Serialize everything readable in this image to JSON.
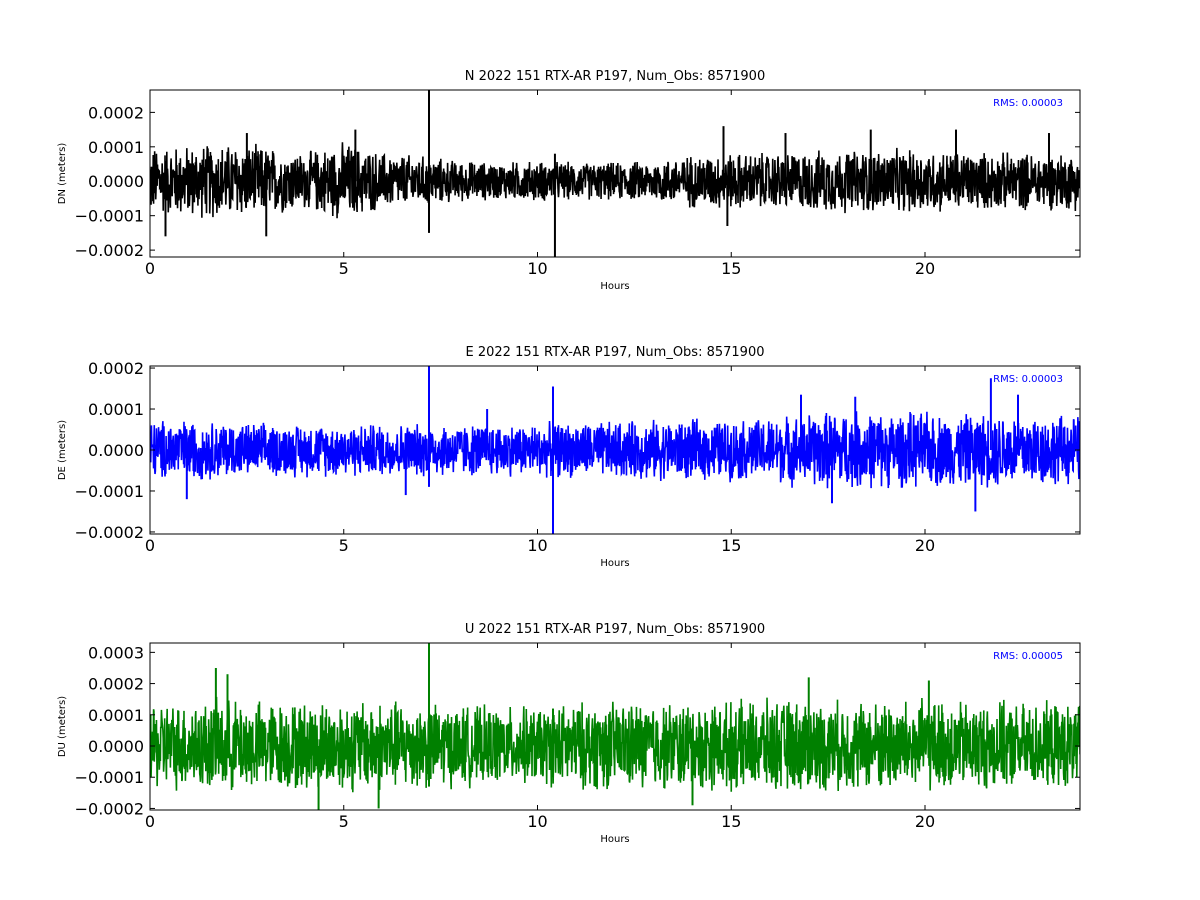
{
  "chart_data": [
    {
      "type": "line",
      "title": "N 2022 151 RTX-AR  P197, Num_Obs: 8571900",
      "xlabel": "Hours",
      "ylabel": "DN (meters)",
      "xlim": [
        0,
        24
      ],
      "ylim": [
        -0.00022,
        0.000265
      ],
      "xticks": [
        0,
        5,
        10,
        15,
        20
      ],
      "xtick_labels": [
        "0",
        "5",
        "10",
        "15",
        "20"
      ],
      "yticks": [
        -0.0002,
        -0.0001,
        0.0,
        0.0001,
        0.0002
      ],
      "ytick_labels": [
        "−0.0002",
        "−0.0001",
        "0.0000",
        "0.0001",
        "0.0002"
      ],
      "annotation": "RMS:  0.00003",
      "annotation_color": "#0000ff",
      "color": "#000000",
      "grid": false,
      "envelope": [
        {
          "x": 0,
          "amp": 0.00011
        },
        {
          "x": 1,
          "amp": 0.000115
        },
        {
          "x": 2,
          "amp": 0.00012
        },
        {
          "x": 3,
          "amp": 0.00011
        },
        {
          "x": 4,
          "amp": 9e-05
        },
        {
          "x": 5,
          "amp": 0.000125
        },
        {
          "x": 6,
          "amp": 9e-05
        },
        {
          "x": 7,
          "amp": 8e-05
        },
        {
          "x": 8,
          "amp": 6.5e-05
        },
        {
          "x": 9,
          "amp": 6e-05
        },
        {
          "x": 10,
          "amp": 6.5e-05
        },
        {
          "x": 11,
          "amp": 6e-05
        },
        {
          "x": 12,
          "amp": 6e-05
        },
        {
          "x": 13,
          "amp": 6.5e-05
        },
        {
          "x": 14,
          "amp": 8.5e-05
        },
        {
          "x": 15,
          "amp": 9e-05
        },
        {
          "x": 16,
          "amp": 9e-05
        },
        {
          "x": 17,
          "amp": 9.5e-05
        },
        {
          "x": 18,
          "amp": 0.0001
        },
        {
          "x": 19,
          "amp": 0.0001
        },
        {
          "x": 20,
          "amp": 0.0001
        },
        {
          "x": 21,
          "amp": 9.5e-05
        },
        {
          "x": 22,
          "amp": 9e-05
        },
        {
          "x": 23,
          "amp": 9e-05
        },
        {
          "x": 24,
          "amp": 9e-05
        }
      ],
      "spikes": [
        {
          "x": 0.4,
          "y": -0.00016
        },
        {
          "x": 3.0,
          "y": -0.00016
        },
        {
          "x": 2.5,
          "y": 0.00014
        },
        {
          "x": 5.3,
          "y": 0.00015
        },
        {
          "x": 7.2,
          "y": 0.000265
        },
        {
          "x": 7.2,
          "y": -0.00015
        },
        {
          "x": 10.45,
          "y": -0.00022
        },
        {
          "x": 10.45,
          "y": 8e-05
        },
        {
          "x": 14.8,
          "y": 0.00016
        },
        {
          "x": 14.9,
          "y": -0.00013
        },
        {
          "x": 16.4,
          "y": 0.00014
        },
        {
          "x": 18.6,
          "y": 0.00015
        },
        {
          "x": 20.8,
          "y": 0.00015
        },
        {
          "x": 23.2,
          "y": 0.00014
        }
      ]
    },
    {
      "type": "line",
      "title": "E 2022 151 RTX-AR  P197, Num_Obs: 8571900",
      "xlabel": "Hours",
      "ylabel": "DE (meters)",
      "xlim": [
        0,
        24
      ],
      "ylim": [
        -0.000205,
        0.000205
      ],
      "xticks": [
        0,
        5,
        10,
        15,
        20
      ],
      "xtick_labels": [
        "0",
        "5",
        "10",
        "15",
        "20"
      ],
      "yticks": [
        -0.0002,
        -0.0001,
        0.0,
        0.0001,
        0.0002
      ],
      "ytick_labels": [
        "−0.0002",
        "−0.0001",
        "0.0000",
        "0.0001",
        "0.0002"
      ],
      "annotation": "RMS:  0.00003",
      "annotation_color": "#0000ff",
      "color": "#0000ff",
      "grid": false,
      "envelope": [
        {
          "x": 0,
          "amp": 8e-05
        },
        {
          "x": 1,
          "amp": 8e-05
        },
        {
          "x": 2,
          "amp": 7.5e-05
        },
        {
          "x": 3,
          "amp": 7e-05
        },
        {
          "x": 4,
          "amp": 7e-05
        },
        {
          "x": 5,
          "amp": 7e-05
        },
        {
          "x": 6,
          "amp": 7e-05
        },
        {
          "x": 7,
          "amp": 7e-05
        },
        {
          "x": 8,
          "amp": 7e-05
        },
        {
          "x": 9,
          "amp": 7e-05
        },
        {
          "x": 10,
          "amp": 7e-05
        },
        {
          "x": 11,
          "amp": 7.5e-05
        },
        {
          "x": 12,
          "amp": 7.5e-05
        },
        {
          "x": 13,
          "amp": 8e-05
        },
        {
          "x": 14,
          "amp": 8e-05
        },
        {
          "x": 15,
          "amp": 8e-05
        },
        {
          "x": 16,
          "amp": 8.5e-05
        },
        {
          "x": 17,
          "amp": 0.0001
        },
        {
          "x": 18,
          "amp": 0.000105
        },
        {
          "x": 19,
          "amp": 0.0001
        },
        {
          "x": 20,
          "amp": 0.0001
        },
        {
          "x": 21,
          "amp": 9.5e-05
        },
        {
          "x": 22,
          "amp": 0.0001
        },
        {
          "x": 23,
          "amp": 9.5e-05
        },
        {
          "x": 24,
          "amp": 9e-05
        }
      ],
      "spikes": [
        {
          "x": 0.95,
          "y": -0.00012
        },
        {
          "x": 6.6,
          "y": -0.00011
        },
        {
          "x": 7.2,
          "y": 0.000205
        },
        {
          "x": 7.2,
          "y": -9e-05
        },
        {
          "x": 8.7,
          "y": 0.0001
        },
        {
          "x": 10.4,
          "y": 0.000155
        },
        {
          "x": 10.4,
          "y": -0.000205
        },
        {
          "x": 16.8,
          "y": 0.000135
        },
        {
          "x": 17.6,
          "y": -0.00013
        },
        {
          "x": 18.2,
          "y": 0.00013
        },
        {
          "x": 21.3,
          "y": -0.00015
        },
        {
          "x": 21.7,
          "y": 0.000175
        },
        {
          "x": 22.4,
          "y": 0.000135
        }
      ]
    },
    {
      "type": "line",
      "title": "U 2022 151 RTX-AR  P197, Num_Obs: 8571900",
      "xlabel": "Hours",
      "ylabel": "DU (meters)",
      "xlim": [
        0,
        24
      ],
      "ylim": [
        -0.000205,
        0.00033
      ],
      "xticks": [
        0,
        5,
        10,
        15,
        20
      ],
      "xtick_labels": [
        "0",
        "5",
        "10",
        "15",
        "20"
      ],
      "yticks": [
        -0.0002,
        -0.0001,
        0.0,
        0.0001,
        0.0002,
        0.0003
      ],
      "ytick_labels": [
        "−0.0002",
        "−0.0001",
        "0.0000",
        "0.0001",
        "0.0002",
        "0.0003"
      ],
      "annotation": "RMS:  0.00005",
      "annotation_color": "#0000ff",
      "color": "#008000",
      "grid": false,
      "envelope": [
        {
          "x": 0,
          "amp": 0.00015
        },
        {
          "x": 1,
          "amp": 0.000155
        },
        {
          "x": 2,
          "amp": 0.00016
        },
        {
          "x": 3,
          "amp": 0.000155
        },
        {
          "x": 4,
          "amp": 0.000155
        },
        {
          "x": 5,
          "amp": 0.00016
        },
        {
          "x": 6,
          "amp": 0.00016
        },
        {
          "x": 7,
          "amp": 0.00015
        },
        {
          "x": 8,
          "amp": 0.00014
        },
        {
          "x": 9,
          "amp": 0.000135
        },
        {
          "x": 10,
          "amp": 0.000135
        },
        {
          "x": 11,
          "amp": 0.00015
        },
        {
          "x": 12,
          "amp": 0.000155
        },
        {
          "x": 13,
          "amp": 0.000155
        },
        {
          "x": 14,
          "amp": 0.00015
        },
        {
          "x": 15,
          "amp": 0.000155
        },
        {
          "x": 16,
          "amp": 0.00016
        },
        {
          "x": 17,
          "amp": 0.00016
        },
        {
          "x": 18,
          "amp": 0.000155
        },
        {
          "x": 19,
          "amp": 0.00016
        },
        {
          "x": 20,
          "amp": 0.00016
        },
        {
          "x": 21,
          "amp": 0.000155
        },
        {
          "x": 22,
          "amp": 0.00015
        },
        {
          "x": 23,
          "amp": 0.00015
        },
        {
          "x": 24,
          "amp": 0.000145
        }
      ],
      "spikes": [
        {
          "x": 1.7,
          "y": 0.00025
        },
        {
          "x": 2.0,
          "y": 0.00023
        },
        {
          "x": 4.35,
          "y": -0.000205
        },
        {
          "x": 5.9,
          "y": -0.0002
        },
        {
          "x": 7.2,
          "y": 0.00033
        },
        {
          "x": 7.2,
          "y": -0.00013
        },
        {
          "x": 10.4,
          "y": 0.00012
        },
        {
          "x": 10.4,
          "y": -0.0001
        },
        {
          "x": 17.0,
          "y": 0.00022
        },
        {
          "x": 14.0,
          "y": -0.00019
        },
        {
          "x": 20.1,
          "y": 0.00021
        }
      ]
    }
  ]
}
